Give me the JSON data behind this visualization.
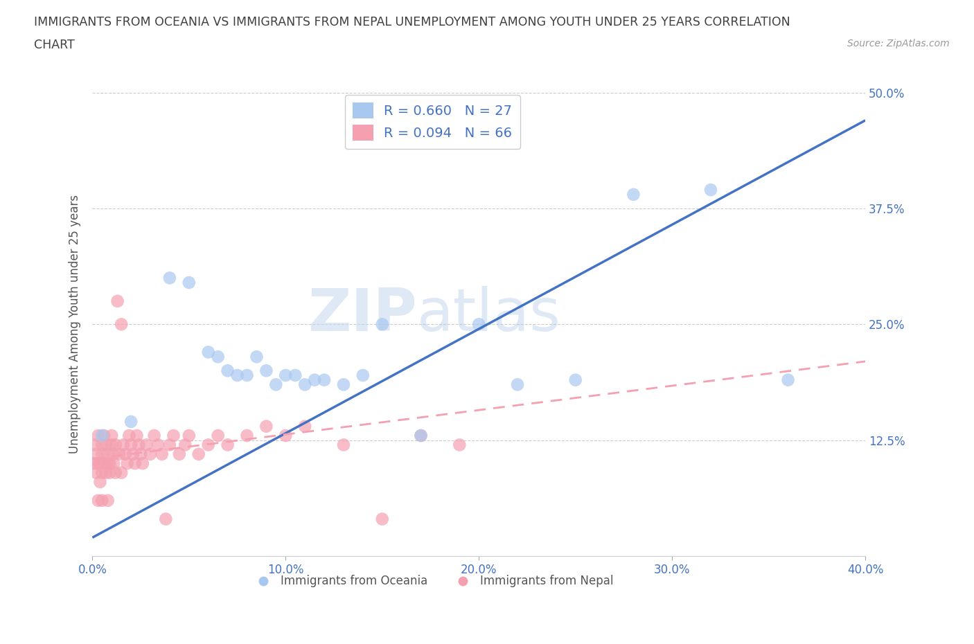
{
  "title_line1": "IMMIGRANTS FROM OCEANIA VS IMMIGRANTS FROM NEPAL UNEMPLOYMENT AMONG YOUTH UNDER 25 YEARS CORRELATION",
  "title_line2": "CHART",
  "source": "Source: ZipAtlas.com",
  "ylabel": "Unemployment Among Youth under 25 years",
  "xlim": [
    0.0,
    0.4
  ],
  "ylim": [
    0.0,
    0.5
  ],
  "xticks": [
    0.0,
    0.1,
    0.2,
    0.3,
    0.4
  ],
  "xtick_labels": [
    "0.0%",
    "10.0%",
    "20.0%",
    "30.0%",
    "40.0%"
  ],
  "yticks": [
    0.125,
    0.25,
    0.375,
    0.5
  ],
  "ytick_labels": [
    "12.5%",
    "25.0%",
    "37.5%",
    "50.0%"
  ],
  "oceania_color": "#a8c8f0",
  "nepal_color": "#f4a0b0",
  "oceania_line_color": "#4472c4",
  "nepal_line_color": "#f4a0b0",
  "oceania_R": 0.66,
  "oceania_N": 27,
  "nepal_R": 0.094,
  "nepal_N": 66,
  "legend_label_oceania": "Immigrants from Oceania",
  "legend_label_nepal": "Immigrants from Nepal",
  "watermark_zip": "ZIP",
  "watermark_atlas": "atlas",
  "background_color": "#ffffff",
  "grid_color": "#cccccc",
  "title_color": "#404040",
  "axis_label_color": "#555555",
  "tick_label_color": "#4472c4",
  "legend_R_color": "#4472c4",
  "oceania_scatter_x": [
    0.005,
    0.02,
    0.04,
    0.05,
    0.06,
    0.065,
    0.07,
    0.075,
    0.08,
    0.085,
    0.09,
    0.095,
    0.1,
    0.105,
    0.11,
    0.115,
    0.12,
    0.13,
    0.14,
    0.15,
    0.17,
    0.2,
    0.22,
    0.25,
    0.28,
    0.32,
    0.36
  ],
  "oceania_scatter_y": [
    0.13,
    0.145,
    0.3,
    0.295,
    0.22,
    0.215,
    0.2,
    0.195,
    0.195,
    0.215,
    0.2,
    0.185,
    0.195,
    0.195,
    0.185,
    0.19,
    0.19,
    0.185,
    0.195,
    0.25,
    0.13,
    0.25,
    0.185,
    0.19,
    0.39,
    0.395,
    0.19
  ],
  "nepal_scatter_x": [
    0.001,
    0.001,
    0.002,
    0.002,
    0.003,
    0.003,
    0.004,
    0.004,
    0.005,
    0.005,
    0.005,
    0.006,
    0.006,
    0.007,
    0.007,
    0.008,
    0.008,
    0.009,
    0.009,
    0.01,
    0.01,
    0.011,
    0.011,
    0.012,
    0.012,
    0.013,
    0.014,
    0.015,
    0.015,
    0.016,
    0.017,
    0.018,
    0.019,
    0.02,
    0.021,
    0.022,
    0.023,
    0.024,
    0.025,
    0.026,
    0.028,
    0.03,
    0.032,
    0.034,
    0.036,
    0.038,
    0.04,
    0.042,
    0.045,
    0.048,
    0.05,
    0.055,
    0.06,
    0.065,
    0.07,
    0.08,
    0.09,
    0.1,
    0.11,
    0.13,
    0.15,
    0.17,
    0.19,
    0.003,
    0.005,
    0.008
  ],
  "nepal_scatter_y": [
    0.12,
    0.1,
    0.11,
    0.09,
    0.1,
    0.13,
    0.1,
    0.08,
    0.09,
    0.11,
    0.12,
    0.1,
    0.13,
    0.09,
    0.12,
    0.1,
    0.11,
    0.1,
    0.09,
    0.12,
    0.13,
    0.1,
    0.11,
    0.09,
    0.12,
    0.275,
    0.11,
    0.09,
    0.25,
    0.12,
    0.11,
    0.1,
    0.13,
    0.12,
    0.11,
    0.1,
    0.13,
    0.12,
    0.11,
    0.1,
    0.12,
    0.11,
    0.13,
    0.12,
    0.11,
    0.04,
    0.12,
    0.13,
    0.11,
    0.12,
    0.13,
    0.11,
    0.12,
    0.13,
    0.12,
    0.13,
    0.14,
    0.13,
    0.14,
    0.12,
    0.04,
    0.13,
    0.12,
    0.06,
    0.06,
    0.06
  ],
  "oceania_line_x0": 0.0,
  "oceania_line_y0": 0.02,
  "oceania_line_x1": 0.4,
  "oceania_line_y1": 0.47,
  "nepal_line_x0": 0.0,
  "nepal_line_y0": 0.105,
  "nepal_line_x1": 0.4,
  "nepal_line_y1": 0.21
}
